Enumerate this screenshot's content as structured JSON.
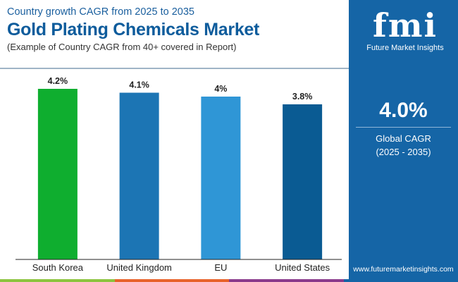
{
  "header": {
    "subtitle": "Country growth CAGR from 2025 to 2035",
    "title": "Gold Plating Chemicals Market",
    "note": "(Example of Country CAGR from 40+ covered in Report)"
  },
  "panel": {
    "logo_text": "fmi",
    "logo_name": "Future Market Insights",
    "global_value": "4.0%",
    "global_label": "Global CAGR",
    "global_period": "(2025 - 2035)",
    "url": "www.futuremarketinsights.com"
  },
  "strip_colors": [
    "#8cc43f",
    "#e8632b",
    "#8a3a8c",
    "#1565a6"
  ],
  "chart_data": {
    "type": "bar",
    "categories": [
      "South Korea",
      "United Kingdom",
      "EU",
      "United States"
    ],
    "values": [
      4.2,
      4.1,
      4.0,
      3.8
    ],
    "value_labels": [
      "4.2%",
      "4.1%",
      "4%",
      "3.8%"
    ],
    "colors": [
      "#0fae2f",
      "#1c75b4",
      "#2f96d6",
      "#0a5b93"
    ],
    "ylim": [
      -0.2,
      4.6
    ],
    "grid": false
  }
}
